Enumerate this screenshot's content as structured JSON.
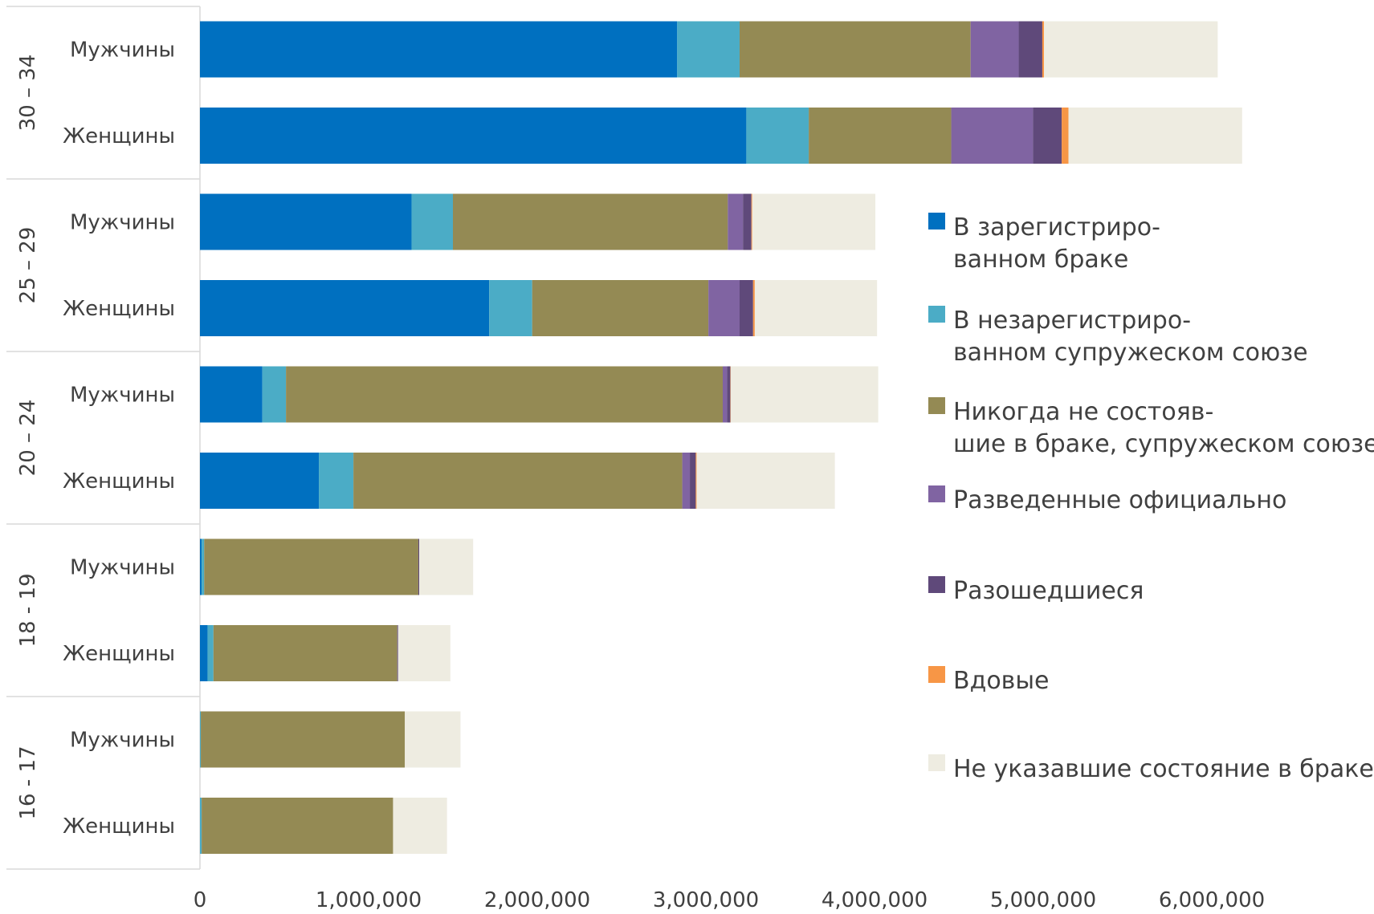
{
  "chart_data": {
    "type": "bar",
    "orientation": "horizontal",
    "stacked": true,
    "title": "",
    "xlabel": "",
    "ylabel": "",
    "xlim": [
      0,
      6500000
    ],
    "x_ticks": [
      0,
      1000000,
      2000000,
      3000000,
      4000000,
      5000000,
      6000000
    ],
    "x_tick_labels": [
      "0",
      "1,000,000",
      "2,000,000",
      "3,000,000",
      "4,000,000",
      "5,000,000",
      "6,000,000"
    ],
    "grid": false,
    "legend_position": "right",
    "groups": [
      {
        "label": "30 – 34",
        "categories": [
          "Мужчины",
          "Женщины"
        ]
      },
      {
        "label": "25 – 29",
        "categories": [
          "Мужчины",
          "Женщины"
        ]
      },
      {
        "label": "20 – 24",
        "categories": [
          "Мужчины",
          "Женщины"
        ]
      },
      {
        "label": "18 - 19",
        "categories": [
          "Мужчины",
          "Женщины"
        ]
      },
      {
        "label": "16 - 17",
        "categories": [
          "Мужчины",
          "Женщины"
        ]
      }
    ],
    "series": [
      {
        "name": "В зарегистриро-ванном браке",
        "legend_lines": [
          "В зарегистриро-",
          "ванном браке"
        ],
        "color": "#0070C0",
        "values": [
          2830000,
          3240000,
          1255000,
          1715000,
          370000,
          705000,
          10000,
          45000,
          0,
          0
        ]
      },
      {
        "name": "В незарегистриро-ванном супружеском союзе",
        "legend_lines": [
          "В незарегистриро-",
          "ванном супружеском союзе"
        ],
        "color": "#4BACC6",
        "values": [
          370000,
          370000,
          245000,
          255000,
          140000,
          205000,
          15000,
          35000,
          5000,
          10000
        ]
      },
      {
        "name": "Никогда не состояв-шие в браке, супружеском союзе",
        "legend_lines": [
          "Никогда не состояв-",
          "шие в браке, супружеском союзе"
        ],
        "color": "#948A54",
        "values": [
          1370000,
          845000,
          1630000,
          1045000,
          2590000,
          1950000,
          1270000,
          1090000,
          1210000,
          1135000
        ]
      },
      {
        "name": "Разведенные официально",
        "legend_lines": [
          "Разведенные официально"
        ],
        "color": "#8064A2",
        "values": [
          285000,
          485000,
          90000,
          185000,
          25000,
          45000,
          0,
          0,
          0,
          0
        ]
      },
      {
        "name": "Разошедшиеся",
        "legend_lines": [
          "Разошедшиеся"
        ],
        "color": "#5F497A",
        "values": [
          140000,
          170000,
          50000,
          80000,
          20000,
          35000,
          5000,
          5000,
          0,
          0
        ]
      },
      {
        "name": "Вдовые",
        "legend_lines": [
          "Вдовые"
        ],
        "color": "#F79646",
        "values": [
          10000,
          40000,
          5000,
          10000,
          2000,
          5000,
          0,
          0,
          0,
          0
        ]
      },
      {
        "name": "Не указавшие состояние в браке",
        "legend_lines": [
          "Не указавшие состояние в браке"
        ],
        "color": "#EEECE1",
        "values": [
          1030000,
          1030000,
          730000,
          725000,
          875000,
          820000,
          320000,
          310000,
          330000,
          320000
        ]
      }
    ]
  }
}
